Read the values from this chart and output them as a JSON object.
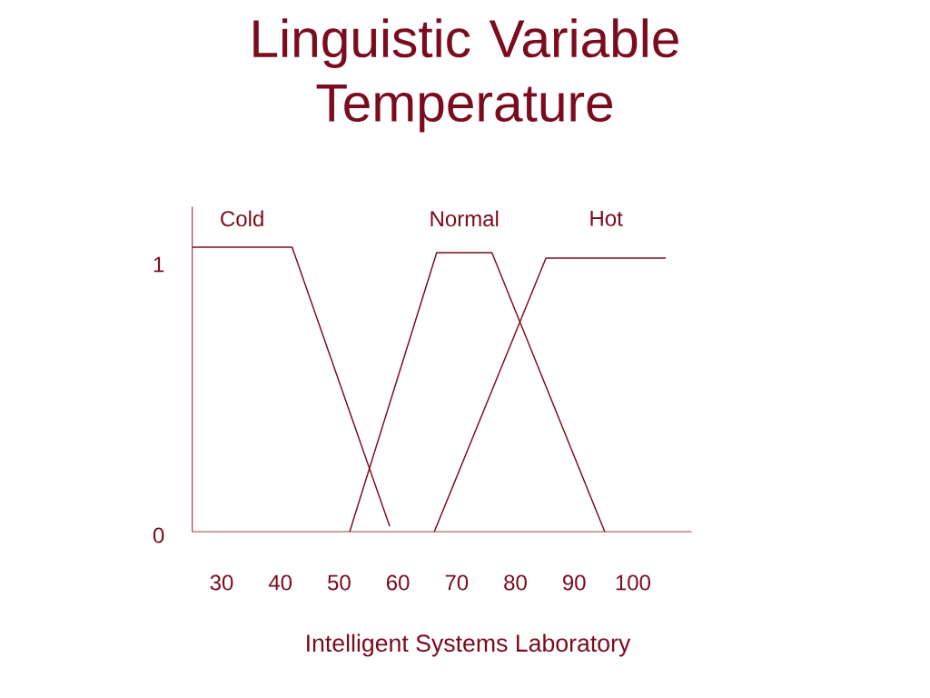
{
  "chart_data": {
    "type": "line",
    "title": "Linguistic Variable Temperature",
    "xlim": [
      25,
      110
    ],
    "ylim": [
      0,
      1.2
    ],
    "xticks": [
      30,
      40,
      50,
      60,
      70,
      80,
      90,
      100
    ],
    "yticks": [
      0,
      1
    ],
    "series": [
      {
        "name": "Cold",
        "color": "#7b0c1f",
        "x": [
          25,
          42,
          58.6
        ],
        "values": [
          1.05,
          1.05,
          0.02
        ]
      },
      {
        "name": "Normal",
        "color": "#7b0c1f",
        "x": [
          51.8,
          66.6,
          76,
          95.2
        ],
        "values": [
          0,
          1.03,
          1.03,
          0
        ]
      },
      {
        "name": "Hot",
        "color": "#7b0c1f",
        "x": [
          66.2,
          85.2,
          105.6
        ],
        "values": [
          0,
          1.01,
          1.01
        ]
      }
    ],
    "line_style": "solid",
    "marker": "none",
    "annotations": [
      "Intelligent Systems Laboratory"
    ]
  }
}
